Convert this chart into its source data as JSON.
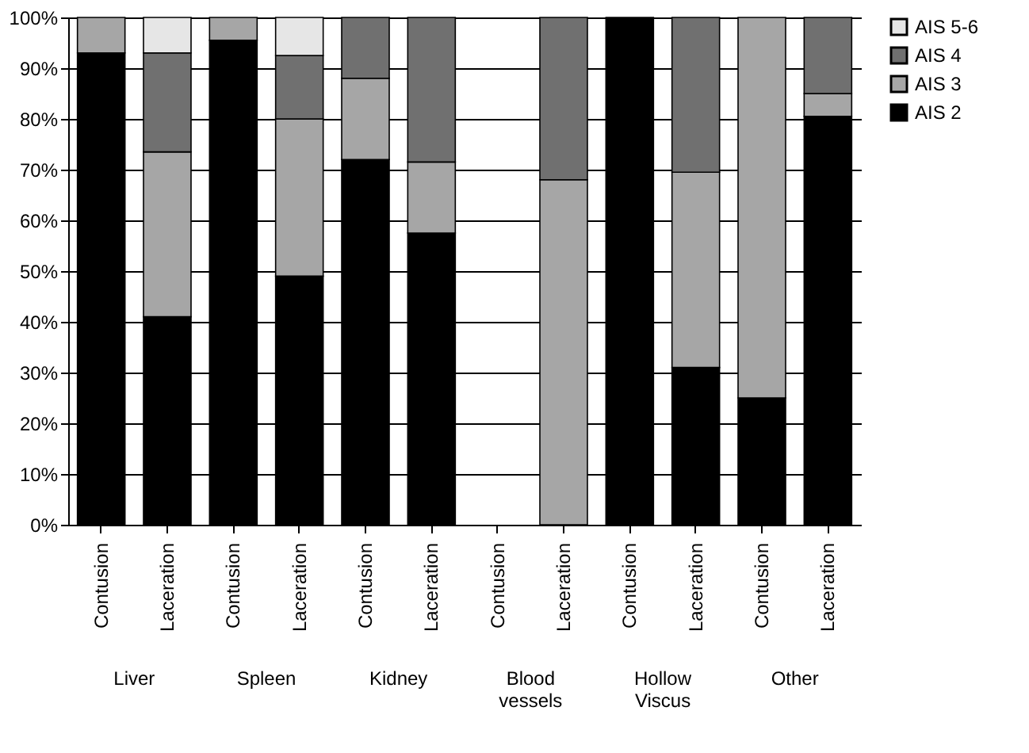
{
  "chart_data": {
    "type": "bar",
    "stacked": true,
    "categories": [
      "Contusion",
      "Laceration",
      "Contusion",
      "Laceration",
      "Contusion",
      "Laceration",
      "Contusion",
      "Laceration",
      "Contusion",
      "Laceration",
      "Contusion",
      "Laceration"
    ],
    "series": [
      {
        "name": "AIS 2",
        "color": "#000000",
        "values": [
          93,
          41,
          95.5,
          49,
          72,
          57.5,
          null,
          0,
          100,
          31,
          25,
          80.5
        ]
      },
      {
        "name": "AIS 3",
        "color": "#a6a6a6",
        "values": [
          7,
          32.5,
          4.5,
          31,
          16,
          14,
          null,
          68,
          null,
          38.5,
          75,
          4.5
        ]
      },
      {
        "name": "AIS 4",
        "color": "#707070",
        "values": [
          null,
          19.5,
          null,
          12.5,
          12,
          28.5,
          null,
          32,
          null,
          30.5,
          null,
          15
        ]
      },
      {
        "name": "AIS 5-6",
        "color": "#e6e6e6",
        "values": [
          null,
          7,
          null,
          7.5,
          null,
          null,
          null,
          null,
          null,
          null,
          null,
          null
        ]
      }
    ],
    "annotations": [
      "Liver",
      "Spleen",
      "Kidney",
      "Blood vessels",
      "Hollow Viscus",
      "Other"
    ],
    "ylim": [
      0,
      100
    ],
    "yticks": [
      {
        "value": 0,
        "label": "0%"
      },
      {
        "value": 10,
        "label": "10%"
      },
      {
        "value": 20,
        "label": "20%"
      },
      {
        "value": 30,
        "label": "30%"
      },
      {
        "value": 40,
        "label": "40%"
      },
      {
        "value": 50,
        "label": "50%"
      },
      {
        "value": 60,
        "label": "60%"
      },
      {
        "value": 70,
        "label": "70%"
      },
      {
        "value": 80,
        "label": "80%"
      },
      {
        "value": 90,
        "label": "90%"
      },
      {
        "value": 100,
        "label": "100%"
      }
    ],
    "grid": "y",
    "legend": "right"
  }
}
